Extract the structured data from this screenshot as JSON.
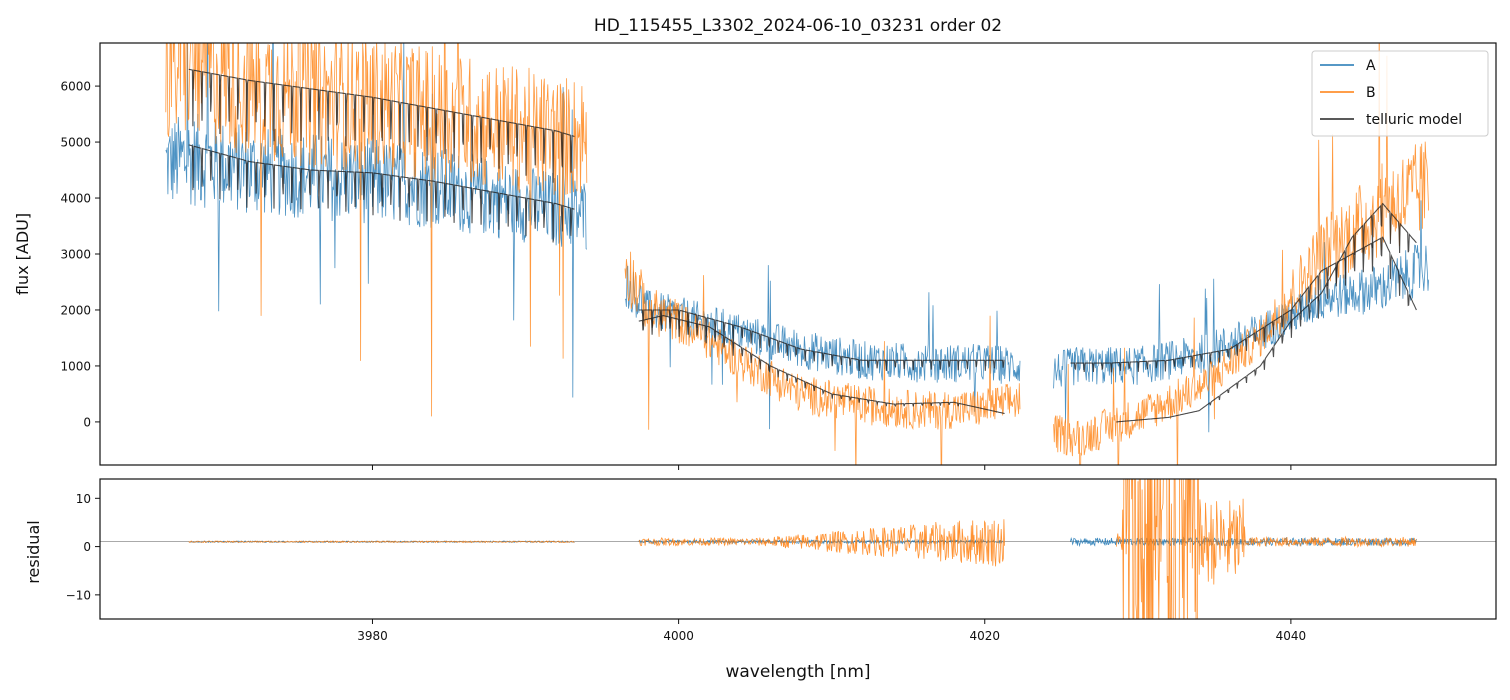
{
  "chart_data": [
    {
      "type": "line",
      "title": "HD_115455_L3302_2024-06-10_03231  order 02",
      "xlabel": "",
      "ylabel": "flux [ADU]",
      "xlim": [
        3962.2,
        4053.4
      ],
      "ylim": [
        -770,
        6770
      ],
      "xticks": [
        3980,
        4000,
        4020,
        4040
      ],
      "yticks": [
        0,
        1000,
        2000,
        3000,
        4000,
        5000,
        6000
      ],
      "legend": {
        "placement": "top-right",
        "entries": [
          "A",
          "B",
          "telluric model"
        ]
      },
      "colors": {
        "A": "#1f77b4",
        "B": "#ff7f0e",
        "model": "#222222"
      },
      "series": [
        {
          "name": "A",
          "segments": [
            {
              "x": [
                3966.5,
                3968,
                3972,
                3976,
                3980,
                3984,
                3988,
                3992,
                3994
              ],
              "y": [
                4600,
                4700,
                4500,
                4400,
                4300,
                4200,
                4000,
                3800,
                3700
              ]
            },
            {
              "x": [
                3996.5,
                3998,
                4000,
                4004,
                4008,
                4012,
                4016,
                4020,
                4022.3
              ],
              "y": [
                2500,
                2000,
                1900,
                1600,
                1300,
                1100,
                1050,
                1050,
                1000
              ]
            },
            {
              "x": [
                4024.5,
                4026,
                4030,
                4034,
                4038,
                4042,
                4046,
                4049
              ],
              "y": [
                900,
                1000,
                1000,
                1200,
                1600,
                2200,
                2400,
                2800
              ]
            }
          ]
        },
        {
          "name": "B",
          "segments": [
            {
              "x": [
                3966.5,
                3968,
                3972,
                3976,
                3980,
                3984,
                3988,
                3992,
                3994
              ],
              "y": [
                6300,
                6500,
                6000,
                5800,
                5700,
                5500,
                5300,
                5100,
                5100
              ]
            },
            {
              "x": [
                3996.5,
                3998,
                4000,
                4004,
                4008,
                4012,
                4016,
                4020,
                4022.3
              ],
              "y": [
                2800,
                2000,
                1800,
                1100,
                500,
                300,
                200,
                250,
                400
              ]
            },
            {
              "x": [
                4024.5,
                4026,
                4030,
                4034,
                4038,
                4042,
                4046,
                4049
              ],
              "y": [
                -200,
                -300,
                100,
                600,
                1500,
                3000,
                3800,
                4200
              ]
            }
          ]
        },
        {
          "name": "telluric model",
          "segments": [
            {
              "x": [
                3968.0,
                3972,
                3976,
                3980,
                3984,
                3988,
                3992,
                3993.2
              ],
              "y": [
                6300,
                6100,
                5950,
                5800,
                5600,
                5400,
                5200,
                5100
              ]
            },
            {
              "x": [
                3968.0,
                3972,
                3976,
                3980,
                3984,
                3988,
                3992,
                3993.2
              ],
              "y": [
                4950,
                4650,
                4500,
                4450,
                4300,
                4100,
                3900,
                3800
              ]
            },
            {
              "x": [
                3997.4,
                4000,
                4004,
                4008,
                4012,
                4016,
                4020,
                4021.3
              ],
              "y": [
                2000,
                2000,
                1700,
                1300,
                1100,
                1100,
                1100,
                1100
              ]
            },
            {
              "x": [
                3997.4,
                3999,
                4002,
                4006,
                4010,
                4014,
                4018,
                4021.3
              ],
              "y": [
                1800,
                1900,
                1700,
                1000,
                500,
                320,
                350,
                150
              ]
            },
            {
              "x": [
                4025.6,
                4028,
                4032,
                4036,
                4040,
                4042,
                4044,
                4046,
                4048.2
              ],
              "y": [
                1050,
                1050,
                1100,
                1300,
                2000,
                2700,
                3000,
                3300,
                2000
              ]
            },
            {
              "x": [
                4028.6,
                4032,
                4034,
                4036,
                4038,
                4040,
                4042,
                4044,
                4046,
                4048.2
              ],
              "y": [
                0,
                80,
                200,
                600,
                1000,
                1800,
                2300,
                3300,
                3900,
                3200
              ]
            }
          ]
        }
      ]
    },
    {
      "type": "line",
      "title": "",
      "xlabel": "wavelength [nm]",
      "ylabel": "residual",
      "xlim": [
        3962.2,
        4053.4
      ],
      "ylim": [
        -15,
        14
      ],
      "xticks": [
        3980,
        4000,
        4020,
        4040
      ],
      "yticks": [
        -10,
        0,
        10
      ],
      "reference_line": 1,
      "series": [
        {
          "name": "A",
          "segments": [
            {
              "x": [
                3968.0,
                3993.2
              ],
              "y": [
                1,
                1
              ]
            },
            {
              "x": [
                3997.4,
                4021.3
              ],
              "y": [
                1,
                1
              ]
            },
            {
              "x": [
                4025.6,
                4048.2
              ],
              "y": [
                1,
                1
              ]
            }
          ]
        },
        {
          "name": "B",
          "segments": [
            {
              "x": [
                3968.0,
                3993.2
              ],
              "y": [
                1,
                1
              ]
            },
            {
              "x": [
                3997.4,
                4021.3
              ],
              "y": [
                1,
                1
              ]
            },
            {
              "x": [
                4028.6,
                4048.2
              ],
              "y": [
                1,
                1
              ]
            }
          ]
        }
      ]
    }
  ]
}
